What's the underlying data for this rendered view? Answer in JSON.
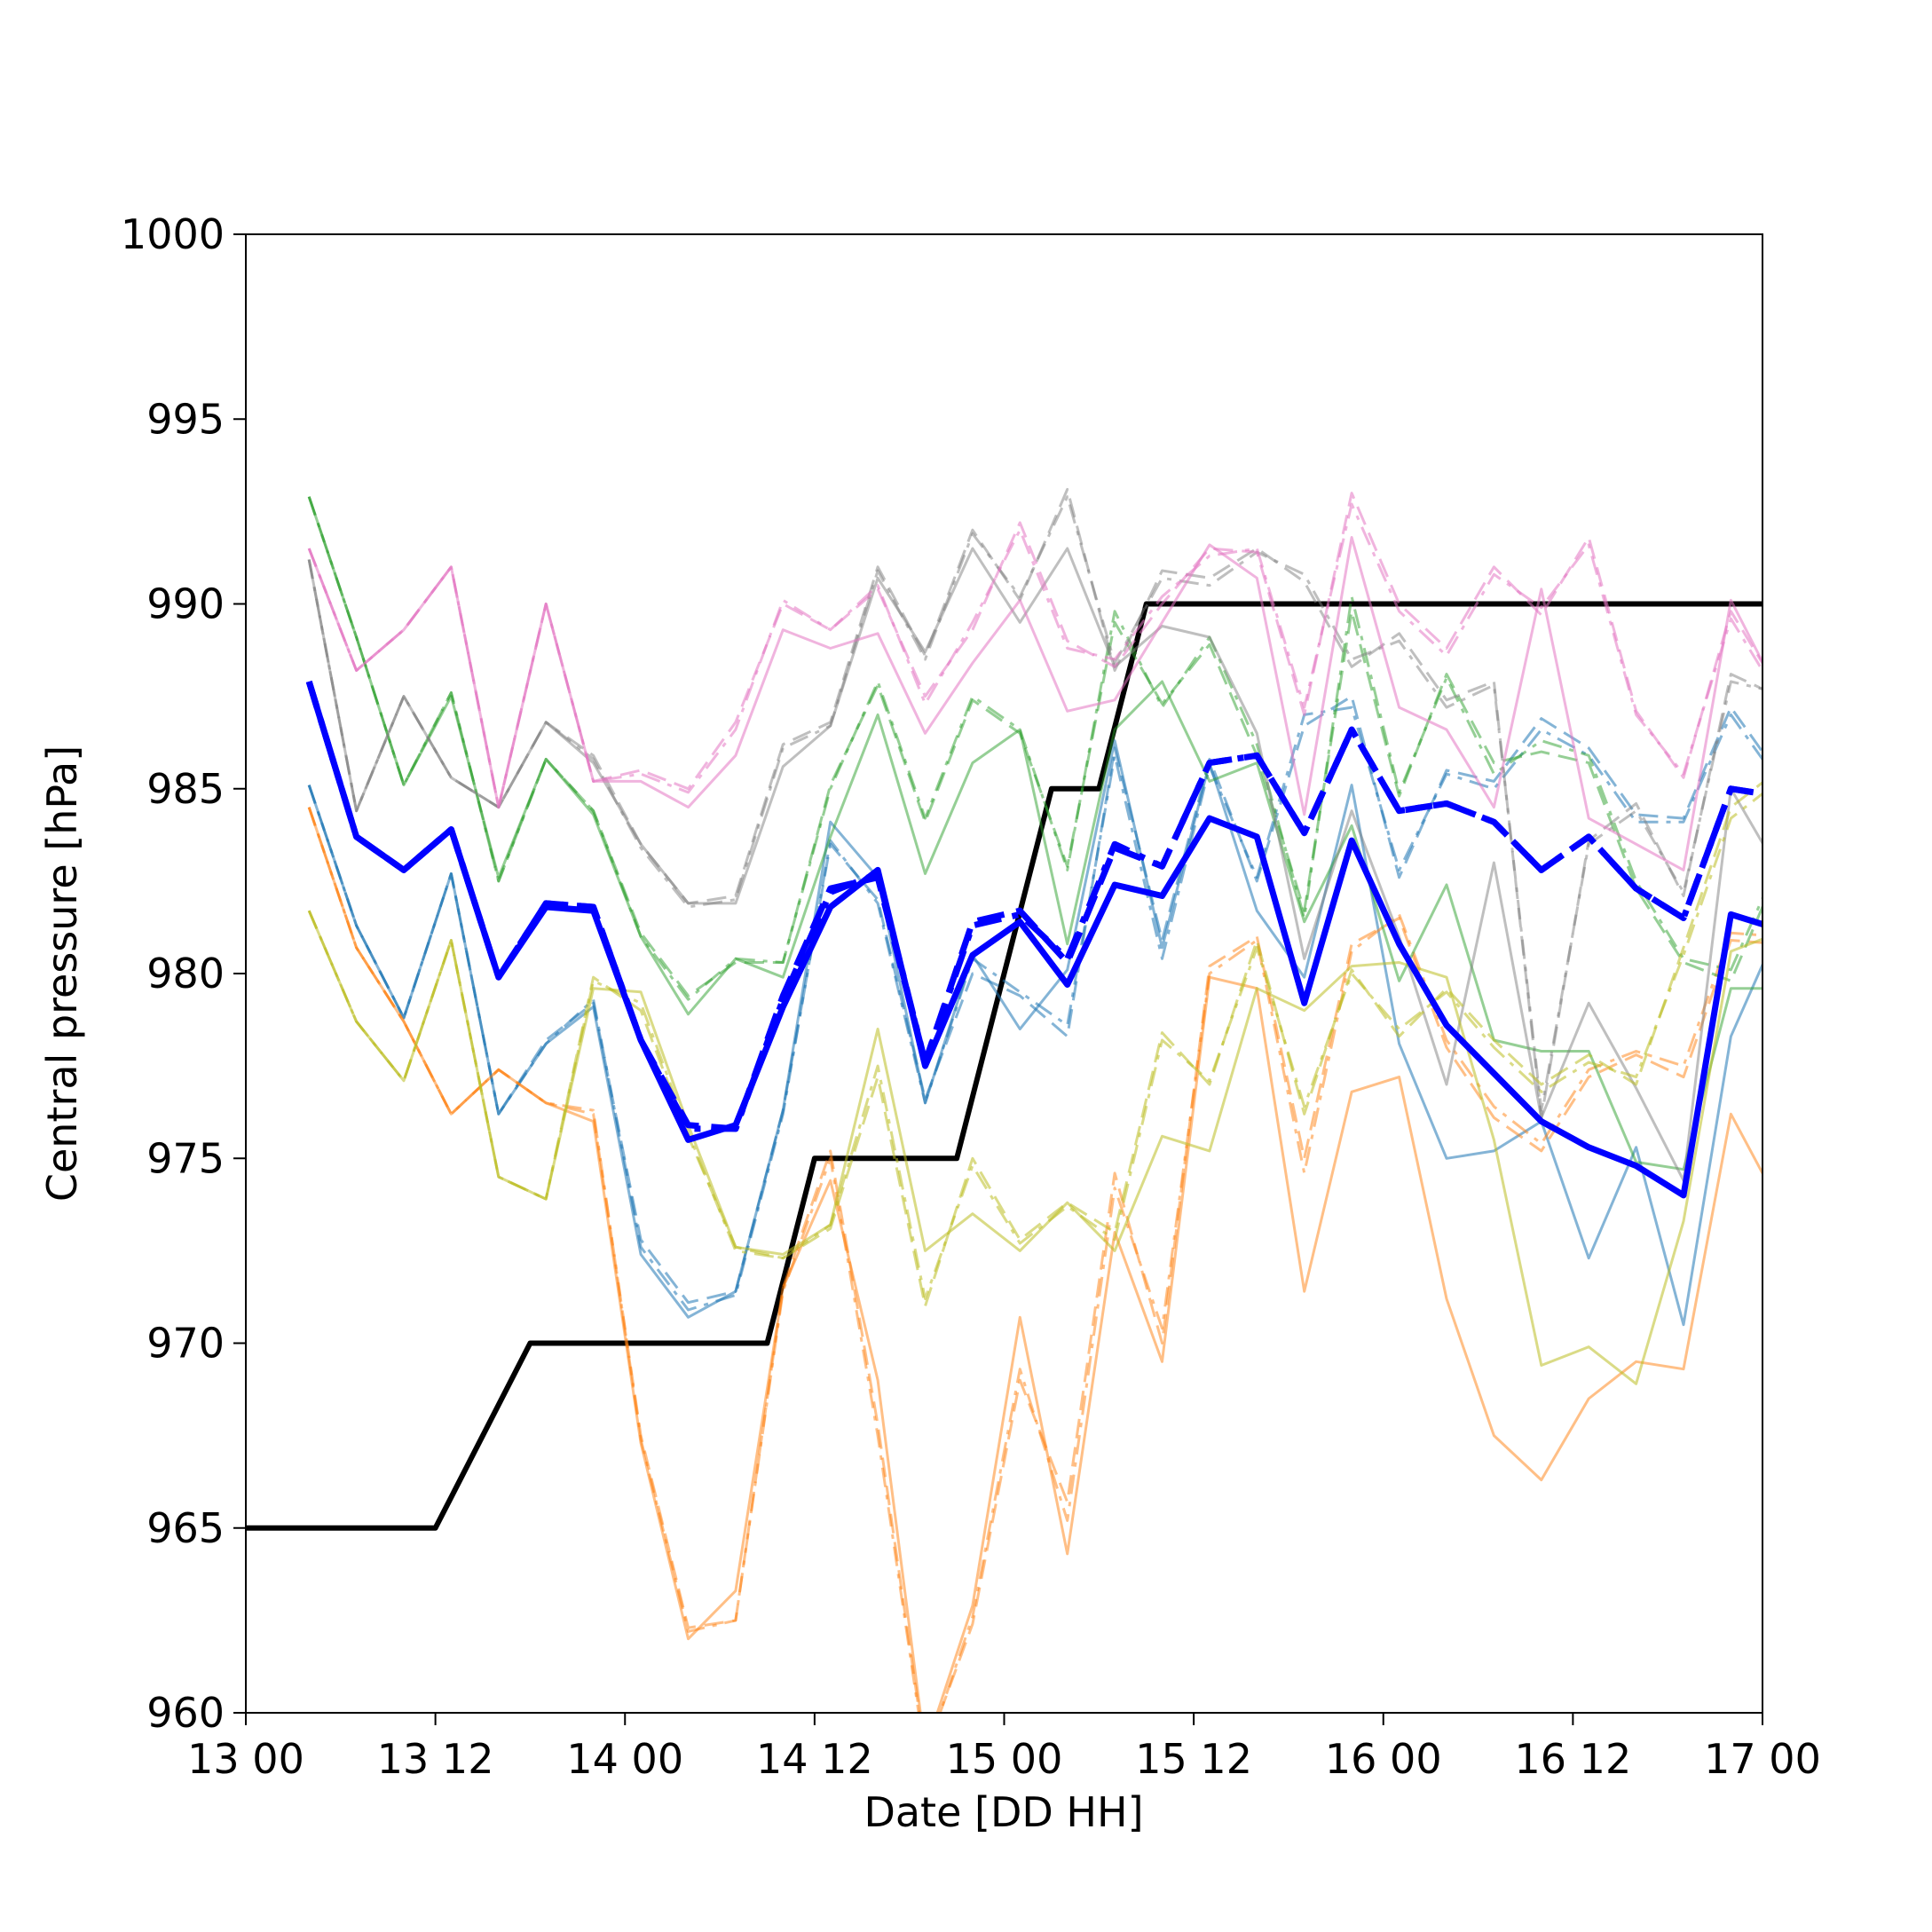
{
  "chart_data": {
    "type": "line",
    "xlabel": "Date [DD HH]",
    "ylabel": "Central pressure [hPa]",
    "x_ticks": [
      {
        "value": 0,
        "label": "13 00"
      },
      {
        "value": 12,
        "label": "13 12"
      },
      {
        "value": 24,
        "label": "14 00"
      },
      {
        "value": 36,
        "label": "14 12"
      },
      {
        "value": 48,
        "label": "15 00"
      },
      {
        "value": 60,
        "label": "15 12"
      },
      {
        "value": 72,
        "label": "16 00"
      },
      {
        "value": 84,
        "label": "16 12"
      },
      {
        "value": 96,
        "label": "17 00"
      }
    ],
    "y_ticks": [
      960,
      965,
      970,
      975,
      980,
      985,
      990,
      995,
      1000
    ],
    "xlim": [
      0,
      96
    ],
    "ylim": [
      960,
      1000
    ],
    "grid": false,
    "x": [
      4,
      7,
      10,
      13,
      16,
      19,
      22,
      25,
      28,
      31,
      34,
      37,
      40,
      43,
      46,
      49,
      52,
      55,
      58,
      61,
      64,
      67,
      70,
      73,
      76,
      79,
      82,
      85,
      88,
      91,
      94,
      97
    ],
    "series": [
      {
        "color": "#000000",
        "width": 6,
        "dash": "solid",
        "opacity": 1,
        "x": [
          0,
          6,
          12,
          18,
          24,
          30,
          33,
          36,
          39,
          42,
          45,
          48,
          51,
          54,
          57,
          60,
          66,
          72,
          78,
          84,
          90,
          96
        ],
        "values": [
          965,
          965,
          965,
          970,
          970,
          970,
          970,
          975,
          975,
          975,
          975,
          980,
          985,
          985,
          990,
          990,
          990,
          990,
          990,
          990,
          990,
          990
        ]
      },
      {
        "color": "#1f77b4",
        "width": 3,
        "dash": "solid",
        "opacity": 0.55,
        "values": [
          985.1,
          981.3,
          978.8,
          982.7,
          976.2,
          978.1,
          979.1,
          972.4,
          970.7,
          971.4,
          976.3,
          984.1,
          982.6,
          976.5,
          980.5,
          978.5,
          980.1,
          986.3,
          980.7,
          985.7,
          981.7,
          979.9,
          985.1,
          978.1,
          975.0,
          975.2,
          976.0,
          972.3,
          975.3,
          970.5,
          978.3,
          981.2
        ]
      },
      {
        "color": "#1f77b4",
        "width": 3,
        "dash": "dash",
        "opacity": 0.55,
        "values": [
          985.1,
          981.3,
          978.8,
          982.7,
          976.2,
          978.2,
          979.2,
          972.8,
          971.1,
          971.4,
          976.3,
          983.5,
          982.0,
          976.6,
          980.0,
          979.4,
          978.3,
          986.1,
          980.9,
          985.8,
          982.5,
          986.7,
          987.5,
          982.6,
          985.5,
          985.2,
          986.9,
          986.1,
          984.3,
          984.2,
          987.2,
          985.4
        ]
      },
      {
        "color": "#1f77b4",
        "width": 3,
        "dash": "dashdot",
        "opacity": 0.55,
        "values": [
          985.1,
          981.3,
          978.8,
          982.7,
          976.2,
          978.1,
          979.3,
          972.6,
          970.9,
          971.3,
          976.2,
          983.6,
          981.9,
          976.5,
          980.4,
          979.5,
          978.6,
          985.9,
          980.4,
          985.6,
          982.6,
          987.0,
          987.2,
          982.8,
          985.4,
          985.0,
          986.6,
          985.9,
          984.1,
          984.1,
          987.0,
          985.2
        ]
      },
      {
        "color": "#ff7f0e",
        "width": 3,
        "dash": "solid",
        "opacity": 0.5,
        "values": [
          984.5,
          980.7,
          978.7,
          976.2,
          977.4,
          976.5,
          976.0,
          967.3,
          962.0,
          963.3,
          971.5,
          974.4,
          969.0,
          959.0,
          962.9,
          970.7,
          964.3,
          973.0,
          969.5,
          979.9,
          979.6,
          971.4,
          976.8,
          977.2,
          971.2,
          967.5,
          966.3,
          968.5,
          969.5,
          969.3,
          976.2,
          973.8
        ]
      },
      {
        "color": "#ff7f0e",
        "width": 3,
        "dash": "dash",
        "opacity": 0.5,
        "values": [
          984.5,
          980.7,
          978.7,
          976.2,
          977.4,
          976.5,
          976.2,
          967.5,
          962.3,
          962.5,
          971.5,
          975.2,
          967.8,
          958.9,
          962.4,
          969.0,
          965.7,
          974.6,
          970.0,
          980.2,
          981.0,
          975.0,
          980.8,
          981.5,
          978.0,
          976.1,
          975.2,
          977.2,
          977.8,
          977.2,
          980.9,
          980.8
        ]
      },
      {
        "color": "#ff7f0e",
        "width": 3,
        "dash": "dashdot",
        "opacity": 0.5,
        "values": [
          984.5,
          980.7,
          978.7,
          976.2,
          977.4,
          976.5,
          976.3,
          967.4,
          962.2,
          962.5,
          971.4,
          975.0,
          967.5,
          958.8,
          962.6,
          969.3,
          965.2,
          974.2,
          970.4,
          980.0,
          980.9,
          974.6,
          980.6,
          981.6,
          978.2,
          976.4,
          975.4,
          977.4,
          977.9,
          977.5,
          981.1,
          981.0
        ]
      },
      {
        "color": "#2ca02c",
        "width": 3,
        "dash": "solid",
        "opacity": 0.5,
        "values": [
          992.9,
          989.1,
          985.1,
          987.5,
          982.6,
          985.8,
          984.3,
          981.0,
          978.9,
          980.4,
          979.9,
          983.7,
          987.0,
          982.7,
          985.7,
          986.6,
          980.8,
          986.6,
          987.9,
          985.2,
          985.7,
          981.4,
          984.0,
          979.8,
          982.4,
          978.2,
          977.9,
          977.9,
          974.9,
          974.7,
          979.6,
          979.6
        ]
      },
      {
        "color": "#2ca02c",
        "width": 3,
        "dash": "dash",
        "opacity": 0.5,
        "values": [
          992.9,
          989.1,
          985.1,
          987.6,
          982.5,
          985.8,
          984.4,
          981.1,
          979.4,
          980.3,
          980.3,
          985.1,
          987.8,
          984.1,
          987.4,
          986.5,
          982.9,
          989.5,
          987.3,
          988.9,
          985.9,
          981.7,
          989.8,
          984.8,
          988.1,
          985.7,
          986.0,
          985.7,
          982.3,
          980.3,
          979.8,
          982.8
        ]
      },
      {
        "color": "#2ca02c",
        "width": 3,
        "dash": "dashdot",
        "opacity": 0.5,
        "values": [
          992.9,
          989.1,
          985.1,
          987.6,
          982.5,
          985.8,
          984.4,
          981.0,
          979.3,
          980.4,
          980.3,
          985.0,
          987.9,
          984.2,
          987.5,
          986.6,
          982.8,
          989.8,
          987.2,
          989.1,
          986.2,
          981.5,
          990.2,
          984.9,
          988.0,
          985.4,
          986.3,
          985.9,
          982.5,
          980.4,
          980.1,
          983.0
        ]
      },
      {
        "color": "#7f7f7f",
        "width": 3,
        "dash": "solid",
        "opacity": 0.5,
        "values": [
          991.2,
          984.4,
          987.5,
          985.3,
          984.5,
          986.8,
          985.7,
          983.5,
          981.9,
          981.9,
          985.6,
          986.7,
          990.7,
          988.7,
          991.5,
          989.5,
          991.5,
          988.3,
          989.4,
          989.1,
          986.5,
          980.4,
          984.4,
          981.0,
          977.0,
          983.0,
          976.1,
          979.2,
          976.9,
          974.4,
          985.0,
          982.8
        ]
      },
      {
        "color": "#7f7f7f",
        "width": 3,
        "dash": "dash",
        "opacity": 0.5,
        "values": [
          991.2,
          984.4,
          987.5,
          985.3,
          984.5,
          986.8,
          985.9,
          983.5,
          981.9,
          982.1,
          986.2,
          986.8,
          991.0,
          988.6,
          992.0,
          990.1,
          993.1,
          988.2,
          990.9,
          990.7,
          991.5,
          990.6,
          988.3,
          989.2,
          987.4,
          987.9,
          976.1,
          983.6,
          984.6,
          982.1,
          988.1,
          987.5
        ]
      },
      {
        "color": "#7f7f7f",
        "width": 3,
        "dash": "dashdot",
        "opacity": 0.5,
        "values": [
          991.2,
          984.4,
          987.5,
          985.3,
          984.5,
          986.8,
          985.8,
          983.4,
          981.8,
          982.0,
          986.1,
          986.7,
          990.9,
          988.5,
          991.9,
          990.2,
          992.9,
          988.4,
          990.7,
          990.5,
          991.4,
          990.8,
          988.5,
          989.0,
          987.2,
          987.8,
          976.3,
          983.5,
          984.4,
          982.2,
          987.9,
          987.6
        ]
      },
      {
        "color": "#e377c2",
        "width": 3,
        "dash": "solid",
        "opacity": 0.55,
        "values": [
          991.5,
          988.2,
          989.3,
          991.0,
          984.5,
          990.0,
          985.2,
          985.2,
          984.5,
          985.9,
          989.3,
          988.8,
          989.2,
          986.5,
          988.4,
          990.1,
          987.1,
          987.4,
          989.5,
          991.6,
          990.7,
          984.3,
          991.8,
          987.2,
          986.6,
          984.5,
          990.4,
          984.2,
          983.5,
          982.8,
          990.1,
          987.6
        ]
      },
      {
        "color": "#e377c2",
        "width": 3,
        "dash": "dash",
        "opacity": 0.55,
        "values": [
          991.5,
          988.2,
          989.3,
          991.0,
          984.5,
          990.0,
          985.2,
          985.5,
          985.0,
          986.8,
          990.0,
          989.3,
          990.4,
          987.5,
          989.3,
          992.2,
          989.0,
          988.3,
          990.0,
          991.5,
          991.4,
          987.0,
          993.0,
          990.0,
          988.8,
          991.0,
          989.7,
          991.8,
          987.1,
          985.3,
          989.8,
          987.7
        ]
      },
      {
        "color": "#e377c2",
        "width": 3,
        "dash": "dashdot",
        "opacity": 0.55,
        "values": [
          991.5,
          988.2,
          989.3,
          991.0,
          984.5,
          990.0,
          985.2,
          985.4,
          984.9,
          986.6,
          990.1,
          989.3,
          990.5,
          987.3,
          989.5,
          992.0,
          988.8,
          988.5,
          990.2,
          991.3,
          991.5,
          987.2,
          992.7,
          989.8,
          988.6,
          990.8,
          989.9,
          991.6,
          987.0,
          985.4,
          989.6,
          987.5
        ]
      },
      {
        "color": "#bcbd22",
        "width": 3,
        "dash": "solid",
        "opacity": 0.55,
        "values": [
          981.7,
          978.7,
          977.1,
          980.9,
          974.5,
          973.9,
          979.6,
          979.5,
          975.9,
          972.6,
          972.4,
          973.2,
          978.5,
          972.5,
          973.5,
          972.5,
          973.8,
          972.5,
          975.6,
          975.2,
          979.6,
          979.0,
          980.2,
          980.3,
          979.9,
          975.5,
          969.4,
          969.9,
          968.9,
          973.3,
          980.6,
          981.1
        ]
      },
      {
        "color": "#bcbd22",
        "width": 3,
        "dash": "dash",
        "opacity": 0.55,
        "values": [
          981.7,
          978.7,
          977.1,
          980.9,
          974.5,
          973.9,
          979.9,
          979.0,
          975.6,
          972.6,
          972.3,
          973.1,
          977.2,
          971.0,
          975.0,
          972.8,
          973.8,
          973.0,
          978.4,
          977.0,
          980.9,
          976.2,
          980.1,
          978.3,
          979.6,
          978.2,
          977.0,
          977.8,
          977.0,
          980.7,
          984.5,
          985.5
        ]
      },
      {
        "color": "#bcbd22",
        "width": 3,
        "dash": "dashdot",
        "opacity": 0.55,
        "values": [
          981.7,
          978.7,
          977.1,
          980.9,
          974.5,
          973.9,
          979.8,
          979.2,
          975.7,
          972.5,
          972.3,
          973.2,
          977.5,
          971.2,
          974.8,
          972.7,
          973.7,
          972.8,
          978.2,
          977.1,
          980.7,
          976.4,
          980.0,
          978.5,
          979.5,
          978.0,
          976.8,
          977.6,
          977.2,
          980.5,
          984.2,
          985.2
        ]
      },
      {
        "color": "#0000ff",
        "width": 7,
        "dash": "solid",
        "opacity": 1,
        "values": [
          987.9,
          983.7,
          982.8,
          983.9,
          979.9,
          981.8,
          981.7,
          978.2,
          975.5,
          975.9,
          979.1,
          981.8,
          982.8,
          977.5,
          980.5,
          981.4,
          979.7,
          982.4,
          982.1,
          984.2,
          983.7,
          979.2,
          983.6,
          980.8,
          978.6,
          977.3,
          976.0,
          975.3,
          974.8,
          974.0,
          981.6,
          981.2
        ]
      },
      {
        "color": "#0000ff",
        "width": 7,
        "dash": "dash",
        "opacity": 1,
        "values": [
          987.9,
          983.7,
          982.8,
          983.9,
          979.9,
          981.9,
          981.8,
          978.2,
          975.9,
          975.8,
          979.4,
          982.3,
          982.6,
          977.6,
          981.4,
          981.7,
          980.3,
          983.4,
          982.9,
          985.7,
          985.9,
          983.8,
          986.6,
          984.4,
          984.6,
          984.1,
          982.8,
          983.7,
          982.3,
          981.5,
          985.0,
          984.8
        ]
      },
      {
        "color": "#0000ff",
        "width": 7,
        "dash": "dashdot",
        "opacity": 1,
        "values": [
          987.9,
          983.7,
          982.8,
          983.9,
          979.9,
          981.9,
          981.8,
          978.2,
          975.8,
          975.8,
          979.3,
          982.2,
          982.7,
          977.6,
          981.3,
          981.6,
          980.4,
          983.5,
          982.9,
          985.7,
          985.9,
          983.8,
          986.6,
          984.4,
          984.6,
          984.1,
          982.8,
          983.7,
          982.3,
          981.5,
          985.0,
          984.8
        ]
      }
    ]
  }
}
